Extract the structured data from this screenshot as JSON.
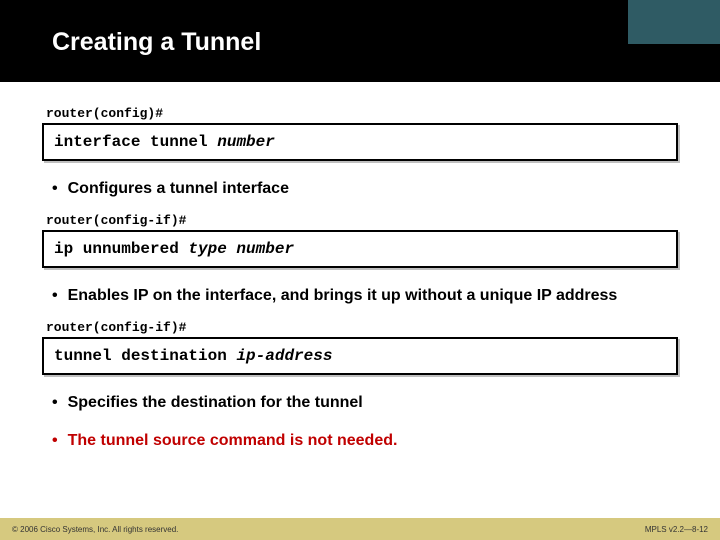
{
  "colors": {
    "header_bg": "#000000",
    "accent_bg": "#2f5b64",
    "footer_bg": "#d6c97f",
    "title_color": "#ffffff",
    "highlight_color": "#c00000",
    "text_color": "#000000"
  },
  "typography": {
    "title_fontsize": 25,
    "bullet_fontsize": 16,
    "command_fontsize": 16,
    "prompt_fontsize": 13,
    "footer_fontsize": 8
  },
  "title": "Creating a Tunnel",
  "sections": [
    {
      "prompt": "router(config)#",
      "command_plain": "interface tunnel ",
      "command_italic": "number",
      "bullets": [
        {
          "text": "Configures a tunnel interface",
          "highlight": false
        }
      ]
    },
    {
      "prompt": "router(config-if)#",
      "command_plain": "ip unnumbered ",
      "command_italic": "type number",
      "bullets": [
        {
          "text": "Enables IP on the interface, and brings it up without a unique IP address",
          "highlight": false
        }
      ]
    },
    {
      "prompt": "router(config-if)#",
      "command_plain": "tunnel destination ",
      "command_italic": "ip-address",
      "bullets": [
        {
          "text": "Specifies the destination for the tunnel",
          "highlight": false
        },
        {
          "text": "The tunnel source command is not needed.",
          "highlight": true
        }
      ]
    }
  ],
  "footer": {
    "left": "© 2006 Cisco Systems, Inc. All rights reserved.",
    "right": "MPLS v2.2—8-12"
  }
}
